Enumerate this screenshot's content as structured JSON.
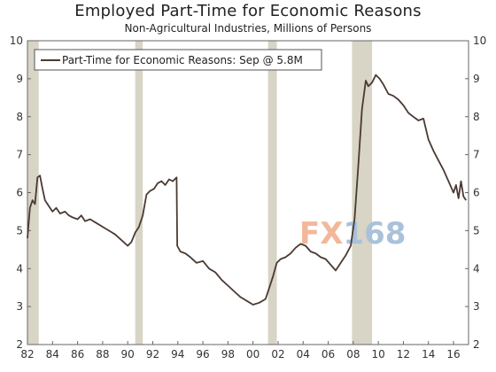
{
  "chart_data": {
    "type": "line",
    "title": "Employed Part-Time for Economic Reasons",
    "subtitle": "Non-Agricultural Industries, Millions of Persons",
    "xlabel": "",
    "ylabel": "",
    "xlim": [
      1982.0,
      2017.2
    ],
    "ylim": [
      2,
      10
    ],
    "y_ticks": [
      2,
      3,
      4,
      5,
      6,
      7,
      8,
      9,
      10
    ],
    "x_ticks": [
      1982,
      1984,
      1986,
      1988,
      1990,
      1992,
      1994,
      1996,
      1998,
      2000,
      2002,
      2004,
      2006,
      2008,
      2010,
      2012,
      2014,
      2016
    ],
    "x_tick_labels": [
      "82",
      "84",
      "86",
      "88",
      "90",
      "92",
      "94",
      "96",
      "98",
      "00",
      "02",
      "04",
      "06",
      "08",
      "10",
      "12",
      "14",
      "16"
    ],
    "grid": false,
    "legend": {
      "position": "top-left",
      "entries": [
        "Part-Time for Economic Reasons: Sep @ 5.8M"
      ]
    },
    "recessions": [
      [
        1982.0,
        1982.9
      ],
      [
        1990.6,
        1991.2
      ],
      [
        2001.2,
        2001.9
      ],
      [
        2007.9,
        2009.5
      ]
    ],
    "colors": {
      "line": "#4a3a32",
      "recession": "#d8d4c6",
      "axis": "#666666"
    },
    "series": [
      {
        "name": "Part-Time for Economic Reasons",
        "x": [
          1982.0,
          1982.2,
          1982.4,
          1982.6,
          1982.8,
          1983.0,
          1983.2,
          1983.4,
          1983.6,
          1983.8,
          1984.0,
          1984.3,
          1984.6,
          1985.0,
          1985.3,
          1985.6,
          1986.0,
          1986.3,
          1986.6,
          1987.0,
          1987.5,
          1988.0,
          1988.5,
          1989.0,
          1989.5,
          1990.0,
          1990.3,
          1990.6,
          1990.9,
          1991.2,
          1991.5,
          1991.8,
          1992.1,
          1992.4,
          1992.7,
          1993.0,
          1993.3,
          1993.6,
          1993.9,
          1993.95,
          1994.2,
          1994.6,
          1995.0,
          1995.5,
          1996.0,
          1996.5,
          1997.0,
          1997.5,
          1998.0,
          1998.5,
          1999.0,
          1999.5,
          2000.0,
          2000.5,
          2001.0,
          2001.3,
          2001.6,
          2001.9,
          2002.2,
          2002.6,
          2003.0,
          2003.4,
          2003.8,
          2004.2,
          2004.6,
          2005.0,
          2005.4,
          2005.8,
          2006.2,
          2006.6,
          2007.0,
          2007.4,
          2007.8,
          2008.1,
          2008.4,
          2008.7,
          2009.0,
          2009.2,
          2009.5,
          2009.8,
          2010.1,
          2010.4,
          2010.8,
          2011.2,
          2011.6,
          2012.0,
          2012.4,
          2012.8,
          2013.2,
          2013.6,
          2014.0,
          2014.4,
          2014.8,
          2015.2,
          2015.6,
          2016.0,
          2016.2,
          2016.4,
          2016.6,
          2016.8,
          2017.0
        ],
        "values": [
          4.8,
          5.6,
          5.8,
          5.7,
          6.4,
          6.45,
          6.1,
          5.8,
          5.7,
          5.6,
          5.5,
          5.6,
          5.45,
          5.5,
          5.4,
          5.35,
          5.3,
          5.4,
          5.25,
          5.3,
          5.2,
          5.1,
          5.0,
          4.9,
          4.75,
          4.6,
          4.7,
          4.95,
          5.1,
          5.4,
          5.95,
          6.05,
          6.1,
          6.25,
          6.3,
          6.2,
          6.35,
          6.3,
          6.4,
          4.6,
          4.45,
          4.4,
          4.3,
          4.15,
          4.2,
          4.0,
          3.9,
          3.7,
          3.55,
          3.4,
          3.25,
          3.15,
          3.05,
          3.1,
          3.2,
          3.5,
          3.8,
          4.15,
          4.25,
          4.3,
          4.4,
          4.55,
          4.65,
          4.6,
          4.45,
          4.4,
          4.3,
          4.25,
          4.1,
          3.95,
          4.15,
          4.35,
          4.6,
          5.3,
          6.7,
          8.2,
          8.95,
          8.8,
          8.9,
          9.1,
          9.0,
          8.85,
          8.6,
          8.55,
          8.45,
          8.3,
          8.1,
          8.0,
          7.9,
          7.95,
          7.4,
          7.1,
          6.85,
          6.6,
          6.3,
          6.0,
          6.2,
          5.85,
          6.3,
          5.9,
          5.8
        ]
      }
    ]
  },
  "watermark": {
    "part1": "FX",
    "part2": "168"
  }
}
